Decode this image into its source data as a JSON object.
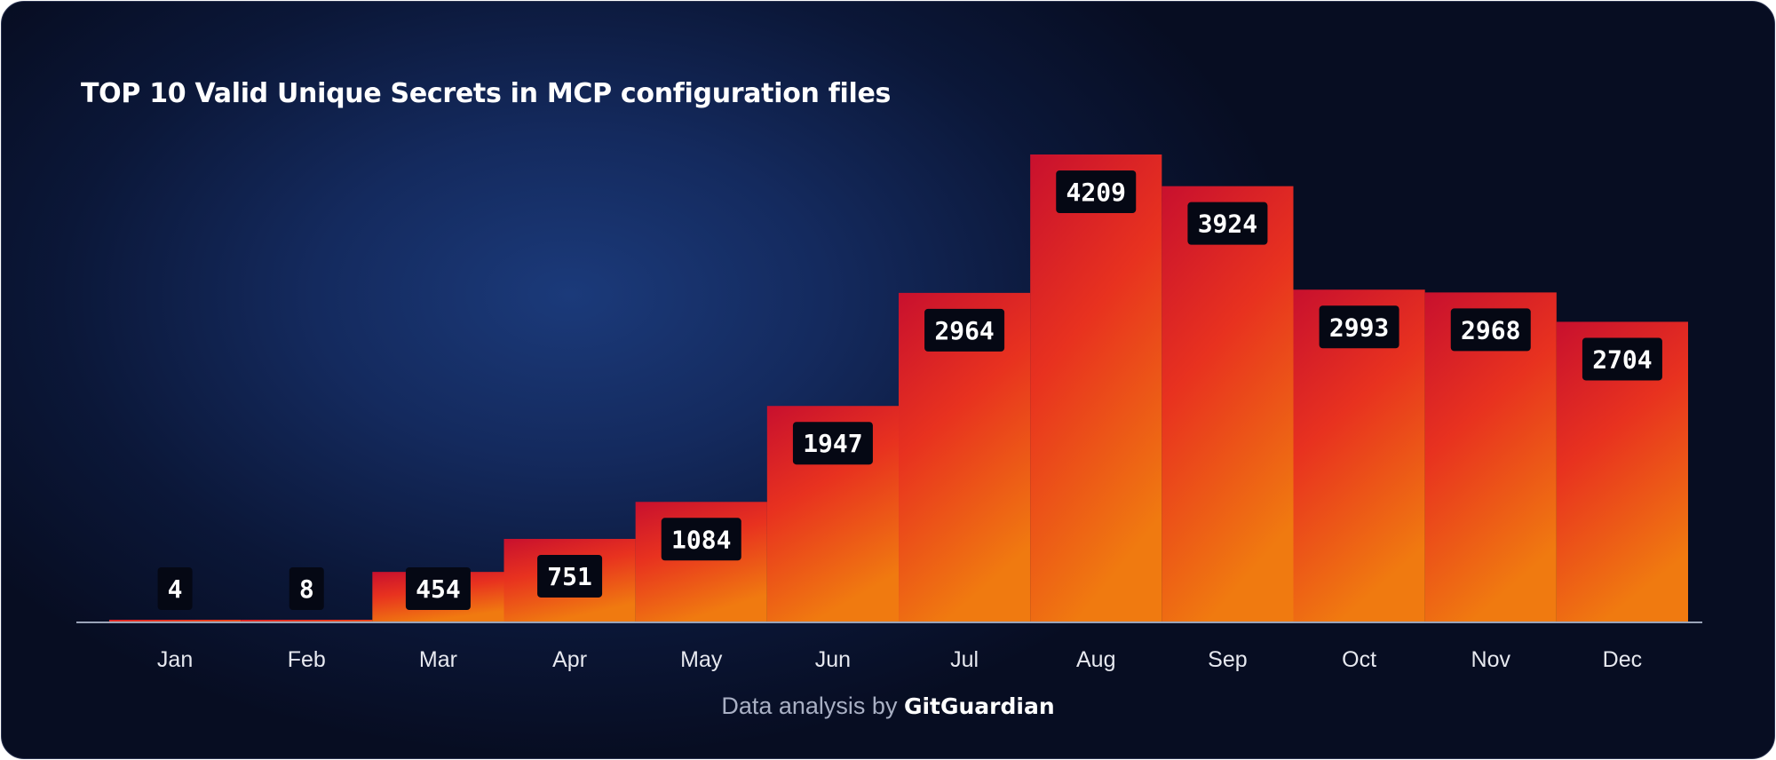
{
  "chart_data": {
    "type": "bar",
    "title": "TOP 10 Valid Unique Secrets in MCP configuration files",
    "xlabel": "",
    "ylabel": "",
    "categories": [
      "Jan",
      "Feb",
      "Mar",
      "Apr",
      "May",
      "Jun",
      "Jul",
      "Aug",
      "Sep",
      "Oct",
      "Nov",
      "Dec"
    ],
    "values": [
      4,
      8,
      454,
      751,
      1084,
      1947,
      2964,
      4209,
      3924,
      2993,
      2968,
      2704
    ],
    "ylim": [
      0,
      4209
    ],
    "grid": false,
    "legend": "none",
    "colors": {
      "bar_top": "#c8102e",
      "bar_mid": "#e8321f",
      "bar_bottom": "#f07a10",
      "label_bg": "#050814",
      "baseline": "#9aa3b8"
    }
  },
  "footer": {
    "prefix": "Data analysis by ",
    "brand": "GitGuardian"
  }
}
